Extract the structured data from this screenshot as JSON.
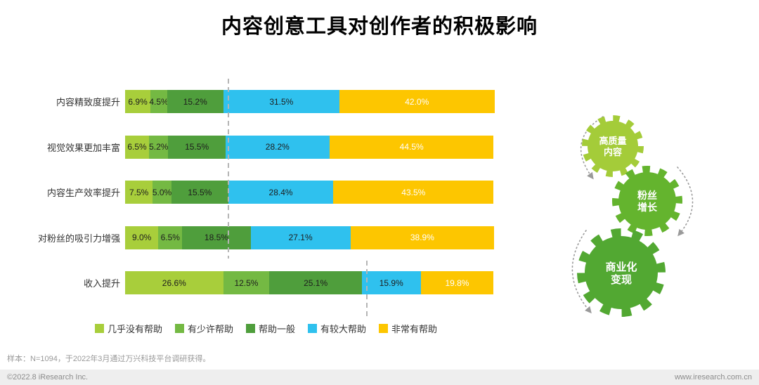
{
  "title": "内容创意工具对创作者的积极影响",
  "chart_data": {
    "type": "bar",
    "orientation": "horizontal",
    "stacked": true,
    "unit": "%",
    "xlim": [
      0,
      100
    ],
    "legend_position": "bottom",
    "categories": [
      "内容精致度提升",
      "视觉效果更加丰富",
      "内容生产效率提升",
      "对粉丝的吸引力增强",
      "收入提升"
    ],
    "series": [
      {
        "name": "几乎没有帮助",
        "color": "#a8ce3b",
        "values": [
          6.9,
          6.5,
          7.5,
          9.0,
          26.6
        ]
      },
      {
        "name": "有少许帮助",
        "color": "#74b943",
        "values": [
          4.5,
          5.2,
          5.0,
          6.5,
          12.5
        ]
      },
      {
        "name": "帮助一般",
        "color": "#4f9e3c",
        "values": [
          15.2,
          15.5,
          15.5,
          18.5,
          25.1
        ]
      },
      {
        "name": "有较大帮助",
        "color": "#2fc1ee",
        "values": [
          31.5,
          28.2,
          28.4,
          27.1,
          15.9
        ]
      },
      {
        "name": "非常有帮助",
        "color": "#fdc600",
        "values": [
          42.0,
          44.5,
          43.5,
          38.9,
          19.8
        ]
      }
    ],
    "dividers": [
      {
        "category_index": 0,
        "after_series": 3
      },
      {
        "category_index": 4,
        "after_series": 3
      }
    ]
  },
  "gears": [
    {
      "label": "高质量内容",
      "lines": [
        "高质量",
        "内容"
      ],
      "color": "#a4cc39"
    },
    {
      "label": "粉丝增长",
      "lines": [
        "粉丝",
        "增长"
      ],
      "color": "#64b42e"
    },
    {
      "label": "商业化变现",
      "lines": [
        "商业化",
        "变现"
      ],
      "color": "#52a832"
    }
  ],
  "footnote": "样本：N=1094，于2022年3月通过万兴科技平台调研获得。",
  "footer": {
    "left": "©2022.8 iResearch Inc.",
    "right": "www.iresearch.com.cn"
  }
}
